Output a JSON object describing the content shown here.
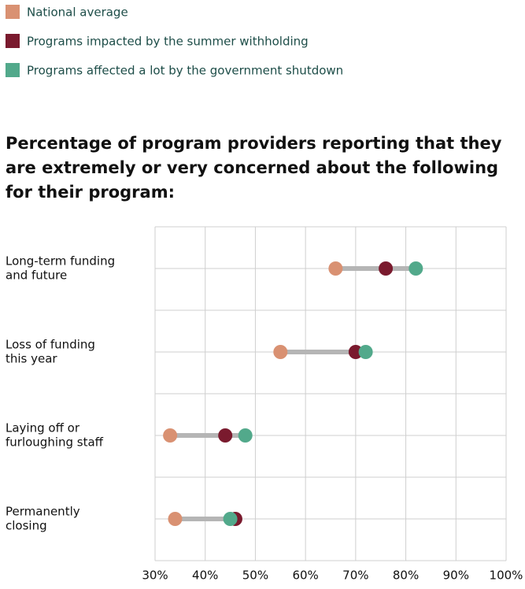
{
  "chart_data": {
    "type": "dot",
    "title": "Percentage of program providers reporting that they are extremely or very concerned about the following for their program:",
    "categories": [
      [
        "Long-term funding",
        "and future"
      ],
      [
        "Loss of funding",
        "this year"
      ],
      [
        "Laying off or",
        "furloughing staff"
      ],
      [
        "Permanently",
        "closing"
      ]
    ],
    "series": [
      {
        "name": "National average",
        "color": "#d99172",
        "values": [
          66,
          55,
          33,
          34
        ]
      },
      {
        "name": "Programs impacted by the summer withholding",
        "color": "#7a1a2e",
        "values": [
          76,
          70,
          44,
          46
        ]
      },
      {
        "name": "Programs affected a lot by the government shutdown",
        "color": "#52a98b",
        "values": [
          82,
          72,
          48,
          45
        ]
      }
    ],
    "xlim": [
      30,
      100
    ],
    "xticks": [
      {
        "value": 30,
        "label": "30%"
      },
      {
        "value": 40,
        "label": "40%"
      },
      {
        "value": 50,
        "label": "50%"
      },
      {
        "value": 60,
        "label": "60%"
      },
      {
        "value": 70,
        "label": "70%"
      },
      {
        "value": 80,
        "label": "80%"
      },
      {
        "value": 90,
        "label": "90%"
      },
      {
        "value": 100,
        "label": "100%"
      }
    ],
    "grid": true
  }
}
